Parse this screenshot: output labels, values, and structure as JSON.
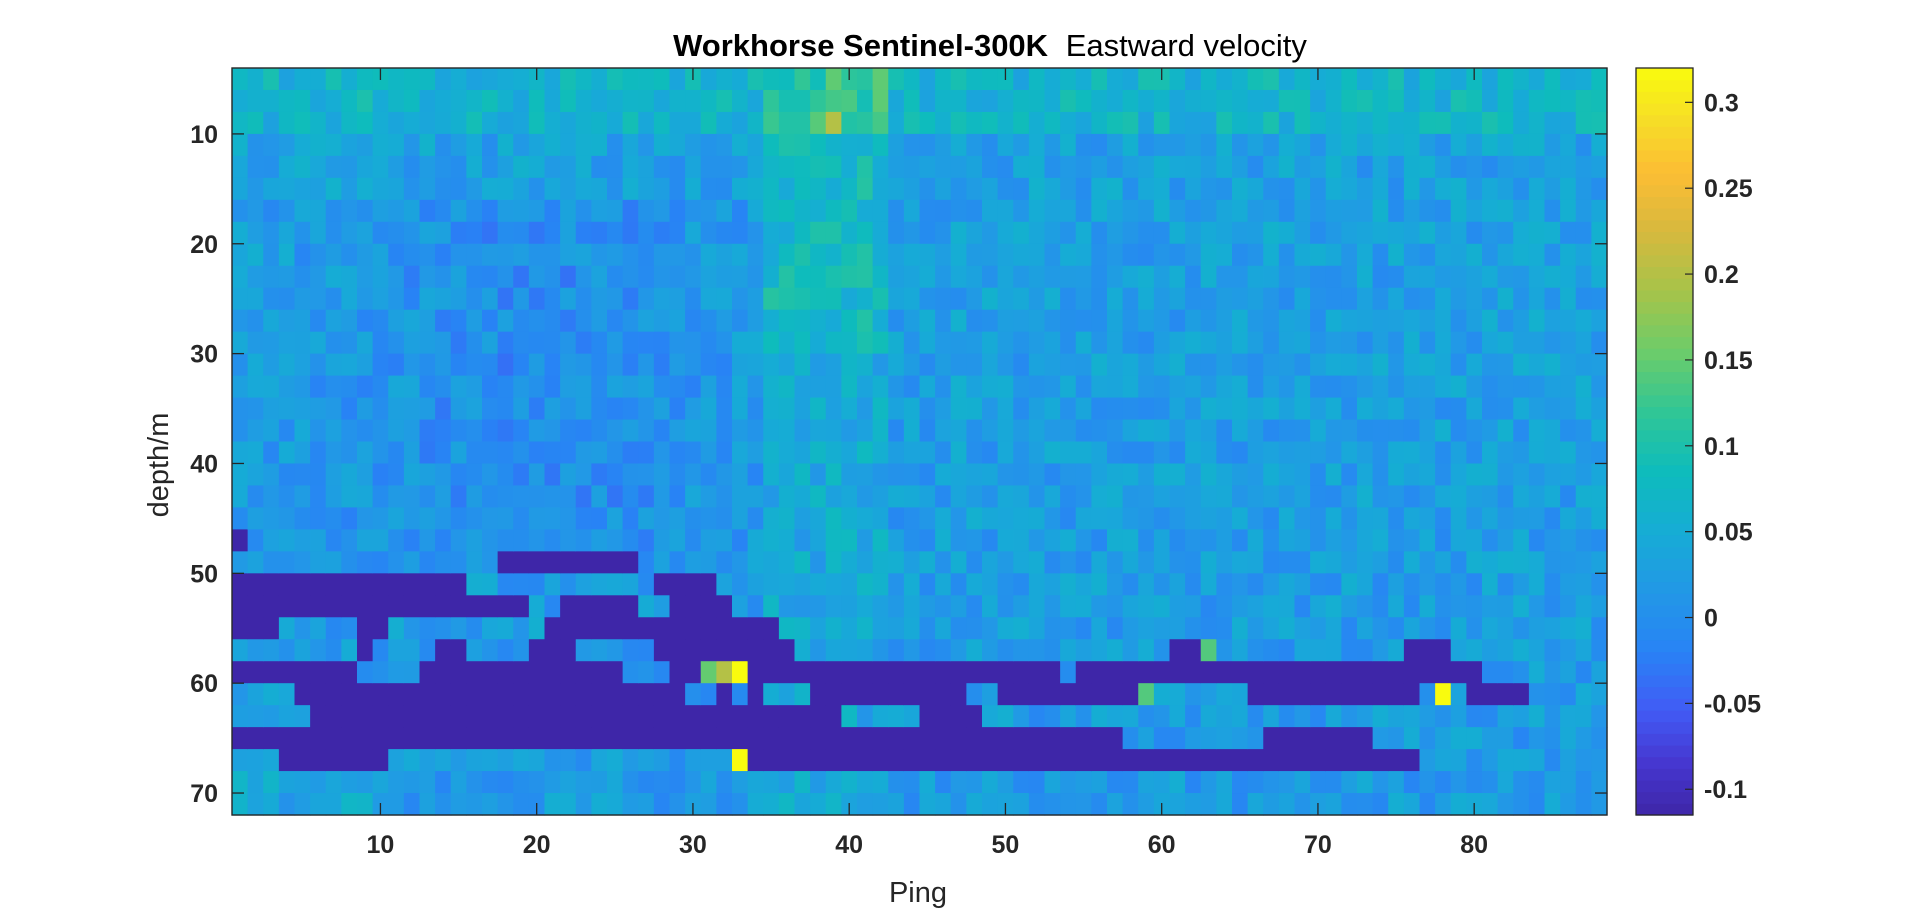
{
  "chart_data": {
    "type": "heatmap",
    "title": {
      "bold_part": "Workhorse Sentinel-300K",
      "regular_part": "Eastward velocity"
    },
    "xlabel": "Ping",
    "ylabel": "depth/m",
    "xlim": [
      0.5,
      88.5
    ],
    "ylim": [
      4,
      72
    ],
    "y_reversed": true,
    "xticks": [
      10,
      20,
      30,
      40,
      50,
      60,
      70,
      80
    ],
    "yticks": [
      10,
      20,
      30,
      40,
      50,
      60,
      70
    ],
    "xtick_labels": [
      "10",
      "20",
      "30",
      "40",
      "50",
      "60",
      "70",
      "80"
    ],
    "ytick_labels": [
      "10",
      "20",
      "30",
      "40",
      "50",
      "60",
      "70"
    ],
    "colormap": "parula",
    "clim": [
      -0.115,
      0.32
    ],
    "colorbar_ticks": [
      0.3,
      0.25,
      0.2,
      0.15,
      0.1,
      0.05,
      0,
      -0.05,
      -0.1
    ],
    "colorbar_tick_labels": [
      "0.3",
      "0.25",
      "0.2",
      "0.15",
      "0.1",
      "0.05",
      "0",
      "-0.05",
      "-0.1"
    ],
    "grid": false,
    "pings": 88,
    "depth_bins": {
      "first": 5,
      "last": 71,
      "step": 2
    },
    "background_field_description_values": {
      "typical_upper": 0.03,
      "typical_lower": 0.0,
      "warm_column_pings": [
        35,
        42
      ],
      "warm_column_value": 0.1
    },
    "invalid_blocks": [
      {
        "depth": [
          47,
          49
        ],
        "pings": [
          1,
          1
        ]
      },
      {
        "depth": [
          49,
          51
        ],
        "pings": [
          18,
          26
        ]
      },
      {
        "depth": [
          51,
          53
        ],
        "pings": [
          1,
          15
        ]
      },
      {
        "depth": [
          51,
          53
        ],
        "pings": [
          28,
          31
        ]
      },
      {
        "depth": [
          53,
          55
        ],
        "pings": [
          1,
          19
        ]
      },
      {
        "depth": [
          53,
          55
        ],
        "pings": [
          22,
          26
        ]
      },
      {
        "depth": [
          53,
          55
        ],
        "pings": [
          29,
          32
        ]
      },
      {
        "depth": [
          55,
          57
        ],
        "pings": [
          1,
          3
        ]
      },
      {
        "depth": [
          55,
          57
        ],
        "pings": [
          9,
          10
        ]
      },
      {
        "depth": [
          55,
          57
        ],
        "pings": [
          21,
          35
        ]
      },
      {
        "depth": [
          57,
          59
        ],
        "pings": [
          9,
          9
        ]
      },
      {
        "depth": [
          57,
          59
        ],
        "pings": [
          14,
          15
        ]
      },
      {
        "depth": [
          57,
          59
        ],
        "pings": [
          20,
          22
        ]
      },
      {
        "depth": [
          57,
          59
        ],
        "pings": [
          28,
          36
        ]
      },
      {
        "depth": [
          57,
          59
        ],
        "pings": [
          61,
          62
        ]
      },
      {
        "depth": [
          57,
          59
        ],
        "pings": [
          76,
          78
        ]
      },
      {
        "depth": [
          59,
          61
        ],
        "pings": [
          1,
          8
        ]
      },
      {
        "depth": [
          59,
          61
        ],
        "pings": [
          13,
          25
        ]
      },
      {
        "depth": [
          59,
          61
        ],
        "pings": [
          29,
          30
        ]
      },
      {
        "depth": [
          59,
          61
        ],
        "pings": [
          34,
          53
        ]
      },
      {
        "depth": [
          59,
          61
        ],
        "pings": [
          55,
          80
        ]
      },
      {
        "depth": [
          61,
          63
        ],
        "pings": [
          5,
          29
        ]
      },
      {
        "depth": [
          61,
          63
        ],
        "pings": [
          32,
          32
        ]
      },
      {
        "depth": [
          61,
          63
        ],
        "pings": [
          34,
          34
        ]
      },
      {
        "depth": [
          61,
          63
        ],
        "pings": [
          38,
          47
        ]
      },
      {
        "depth": [
          61,
          63
        ],
        "pings": [
          50,
          58
        ]
      },
      {
        "depth": [
          61,
          63
        ],
        "pings": [
          66,
          76
        ]
      },
      {
        "depth": [
          61,
          63
        ],
        "pings": [
          80,
          83
        ]
      },
      {
        "depth": [
          63,
          65
        ],
        "pings": [
          6,
          39
        ]
      },
      {
        "depth": [
          63,
          65
        ],
        "pings": [
          45,
          48
        ]
      },
      {
        "depth": [
          65,
          67
        ],
        "pings": [
          1,
          26
        ]
      },
      {
        "depth": [
          65,
          67
        ],
        "pings": [
          27,
          57
        ]
      },
      {
        "depth": [
          65,
          67
        ],
        "pings": [
          67,
          73
        ]
      },
      {
        "depth": [
          67,
          69
        ],
        "pings": [
          4,
          10
        ]
      },
      {
        "depth": [
          67,
          69
        ],
        "pings": [
          34,
          76
        ]
      }
    ],
    "highlight_cells": [
      {
        "ping": 33,
        "depth": 59,
        "value": 0.32
      },
      {
        "ping": 33,
        "depth": 67,
        "value": 0.32
      },
      {
        "ping": 78,
        "depth": 61,
        "value": 0.32
      },
      {
        "ping": 31,
        "depth": 59,
        "value": 0.15
      },
      {
        "ping": 32,
        "depth": 59,
        "value": 0.2
      },
      {
        "ping": 39,
        "depth": 9,
        "value": 0.2
      },
      {
        "ping": 59,
        "depth": 61,
        "value": 0.14
      },
      {
        "ping": 63,
        "depth": 57,
        "value": 0.14
      }
    ]
  }
}
